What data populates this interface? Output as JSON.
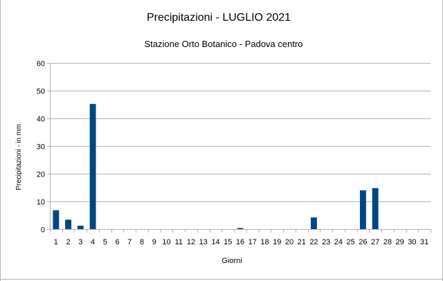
{
  "chart_data": {
    "type": "bar",
    "title": "Precipitazioni - LUGLIO 2021",
    "subtitle": "Stazione Orto Botanico - Padova centro",
    "xlabel": "Giorni",
    "ylabel": "Precipitazioni - in mm",
    "ylim": [
      0,
      60
    ],
    "yticks": [
      "0",
      "10",
      "20",
      "30",
      "40",
      "50",
      "60"
    ],
    "grid": true,
    "legend": "none",
    "bar_color": "#004586",
    "categories": [
      "1",
      "2",
      "3",
      "4",
      "5",
      "6",
      "7",
      "8",
      "9",
      "10",
      "11",
      "12",
      "13",
      "14",
      "15",
      "16",
      "17",
      "18",
      "19",
      "20",
      "21",
      "22",
      "23",
      "24",
      "25",
      "26",
      "27",
      "28",
      "29",
      "30",
      "31"
    ],
    "values": [
      6.8,
      3.4,
      1.2,
      45.2,
      0,
      0,
      0,
      0,
      0,
      0,
      0,
      0,
      0,
      0,
      0,
      0.4,
      0,
      0,
      0,
      0,
      0,
      4.2,
      0,
      0,
      0,
      14,
      14.8,
      0,
      0,
      0,
      0
    ]
  }
}
